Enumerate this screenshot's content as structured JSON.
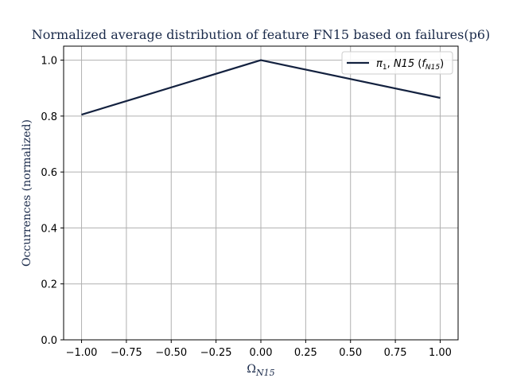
{
  "chart_data": {
    "type": "line",
    "title": "Normalized average distribution of feature FN15 based on failures(p6)",
    "xlabel": "ΩN15",
    "ylabel": "Occurrences (normalized)",
    "xlim": [
      -1.1,
      1.1
    ],
    "ylim": [
      0.0,
      1.05
    ],
    "xticks": [
      -1.0,
      -0.75,
      -0.5,
      -0.25,
      0.0,
      0.25,
      0.5,
      0.75,
      1.0
    ],
    "xtick_labels": [
      "−1.00",
      "−0.75",
      "−0.50",
      "−0.25",
      "0.00",
      "0.25",
      "0.50",
      "0.75",
      "1.00"
    ],
    "yticks": [
      0.0,
      0.2,
      0.4,
      0.6,
      0.8,
      1.0
    ],
    "ytick_labels": [
      "0.0",
      "0.2",
      "0.4",
      "0.6",
      "0.8",
      "1.0"
    ],
    "grid": true,
    "legend_position": "top-right",
    "series": [
      {
        "name": "π1, N15 (fN15)",
        "color": "#13213f",
        "x": [
          -1.0,
          0.0,
          1.0
        ],
        "y": [
          0.805,
          1.0,
          0.865
        ]
      }
    ]
  }
}
